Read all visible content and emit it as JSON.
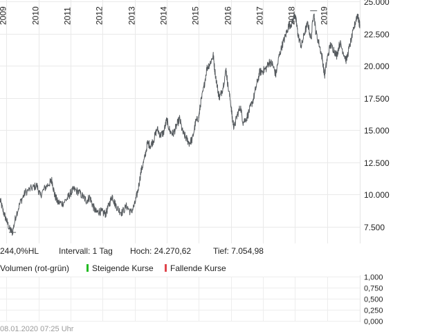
{
  "chart_data": {
    "type": "line",
    "x_tick_labels": [
      "2009",
      "2010",
      "2011",
      "2012",
      "2013",
      "2014",
      "2015",
      "2016",
      "2017",
      "2018",
      "2019"
    ],
    "y_tick_labels": [
      "7.500",
      "10.000",
      "12.500",
      "15.000",
      "17.500",
      "20.000",
      "22.500",
      "25.000"
    ],
    "y_ticks": [
      7500,
      10000,
      12500,
      15000,
      17500,
      20000,
      22500,
      25000
    ],
    "ylim": [
      6200,
      25000
    ],
    "xlim": [
      2008.8,
      2020.02
    ],
    "grid": true,
    "series": [
      {
        "color": "#555a5e",
        "points": [
          [
            2008.8,
            9600
          ],
          [
            2008.9,
            8700
          ],
          [
            2009.0,
            8000
          ],
          [
            2009.1,
            7300
          ],
          [
            2009.19,
            7055
          ],
          [
            2009.3,
            8400
          ],
          [
            2009.45,
            9500
          ],
          [
            2009.6,
            10200
          ],
          [
            2009.8,
            10500
          ],
          [
            2009.95,
            10700
          ],
          [
            2010.05,
            9900
          ],
          [
            2010.2,
            10500
          ],
          [
            2010.35,
            10900
          ],
          [
            2010.42,
            11100
          ],
          [
            2010.5,
            10000
          ],
          [
            2010.6,
            9400
          ],
          [
            2010.75,
            9300
          ],
          [
            2010.9,
            9700
          ],
          [
            2011.0,
            10100
          ],
          [
            2011.1,
            10400
          ],
          [
            2011.25,
            10200
          ],
          [
            2011.4,
            9800
          ],
          [
            2011.5,
            9500
          ],
          [
            2011.6,
            9800
          ],
          [
            2011.7,
            9100
          ],
          [
            2011.8,
            8600
          ],
          [
            2011.9,
            8700
          ],
          [
            2012.0,
            8600
          ],
          [
            2012.1,
            8500
          ],
          [
            2012.2,
            9200
          ],
          [
            2012.3,
            9900
          ],
          [
            2012.38,
            9300
          ],
          [
            2012.5,
            8800
          ],
          [
            2012.6,
            8600
          ],
          [
            2012.75,
            9100
          ],
          [
            2012.88,
            8600
          ],
          [
            2013.0,
            9200
          ],
          [
            2013.1,
            10300
          ],
          [
            2013.2,
            11800
          ],
          [
            2013.3,
            12700
          ],
          [
            2013.4,
            14000
          ],
          [
            2013.5,
            13800
          ],
          [
            2013.6,
            14300
          ],
          [
            2013.7,
            15100
          ],
          [
            2013.8,
            14600
          ],
          [
            2013.9,
            14800
          ],
          [
            2014.0,
            15800
          ],
          [
            2014.1,
            14900
          ],
          [
            2014.2,
            14700
          ],
          [
            2014.3,
            15300
          ],
          [
            2014.4,
            15900
          ],
          [
            2014.5,
            14800
          ],
          [
            2014.6,
            14400
          ],
          [
            2014.7,
            14000
          ],
          [
            2014.8,
            14300
          ],
          [
            2014.9,
            15600
          ],
          [
            2015.0,
            16000
          ],
          [
            2015.05,
            17000
          ],
          [
            2015.15,
            18200
          ],
          [
            2015.25,
            19800
          ],
          [
            2015.35,
            20200
          ],
          [
            2015.45,
            20800
          ],
          [
            2015.5,
            19600
          ],
          [
            2015.6,
            18000
          ],
          [
            2015.65,
            17500
          ],
          [
            2015.75,
            18300
          ],
          [
            2015.85,
            19700
          ],
          [
            2015.9,
            18600
          ],
          [
            2016.0,
            17000
          ],
          [
            2016.05,
            15800
          ],
          [
            2016.1,
            15200
          ],
          [
            2016.2,
            16200
          ],
          [
            2016.3,
            16800
          ],
          [
            2016.38,
            15600
          ],
          [
            2016.5,
            16000
          ],
          [
            2016.6,
            16700
          ],
          [
            2016.7,
            17400
          ],
          [
            2016.8,
            18500
          ],
          [
            2016.9,
            19500
          ],
          [
            2017.0,
            19600
          ],
          [
            2017.1,
            19800
          ],
          [
            2017.2,
            20300
          ],
          [
            2017.3,
            20100
          ],
          [
            2017.4,
            19300
          ],
          [
            2017.5,
            20700
          ],
          [
            2017.6,
            21600
          ],
          [
            2017.7,
            22300
          ],
          [
            2017.8,
            23100
          ],
          [
            2017.9,
            23300
          ],
          [
            2018.0,
            24000
          ],
          [
            2018.05,
            23200
          ],
          [
            2018.1,
            22300
          ],
          [
            2018.2,
            21500
          ],
          [
            2018.3,
            22600
          ],
          [
            2018.4,
            23300
          ],
          [
            2018.5,
            22000
          ],
          [
            2018.58,
            24270
          ],
          [
            2018.65,
            22600
          ],
          [
            2018.75,
            21700
          ],
          [
            2018.85,
            20600
          ],
          [
            2018.92,
            19200
          ],
          [
            2019.0,
            20500
          ],
          [
            2019.1,
            21600
          ],
          [
            2019.2,
            21300
          ],
          [
            2019.3,
            20800
          ],
          [
            2019.4,
            21800
          ],
          [
            2019.5,
            21100
          ],
          [
            2019.6,
            20400
          ],
          [
            2019.7,
            21500
          ],
          [
            2019.8,
            22500
          ],
          [
            2019.9,
            23600
          ],
          [
            2019.95,
            24000
          ],
          [
            2020.0,
            23300
          ],
          [
            2020.02,
            23200
          ]
        ]
      }
    ]
  },
  "info": {
    "range": "244,0%HL",
    "interval": "Intervall: 1 Tag",
    "high": "Hoch:  24.270,62",
    "low": "Tief:  7.054,98"
  },
  "legend": {
    "volume": "Volumen (rot-grün)",
    "rising": "Steigende Kurse",
    "falling": "Fallende Kurse",
    "rising_color": "#22bb22",
    "falling_color": "#e0444b"
  },
  "volume_axis": {
    "labels": [
      "1,000",
      "0,750",
      "0,500",
      "0,250",
      "0,000"
    ],
    "values": [
      1.0,
      0.75,
      0.5,
      0.25,
      0.0
    ]
  },
  "footer": "08.01.2020 07:25 Uhr"
}
